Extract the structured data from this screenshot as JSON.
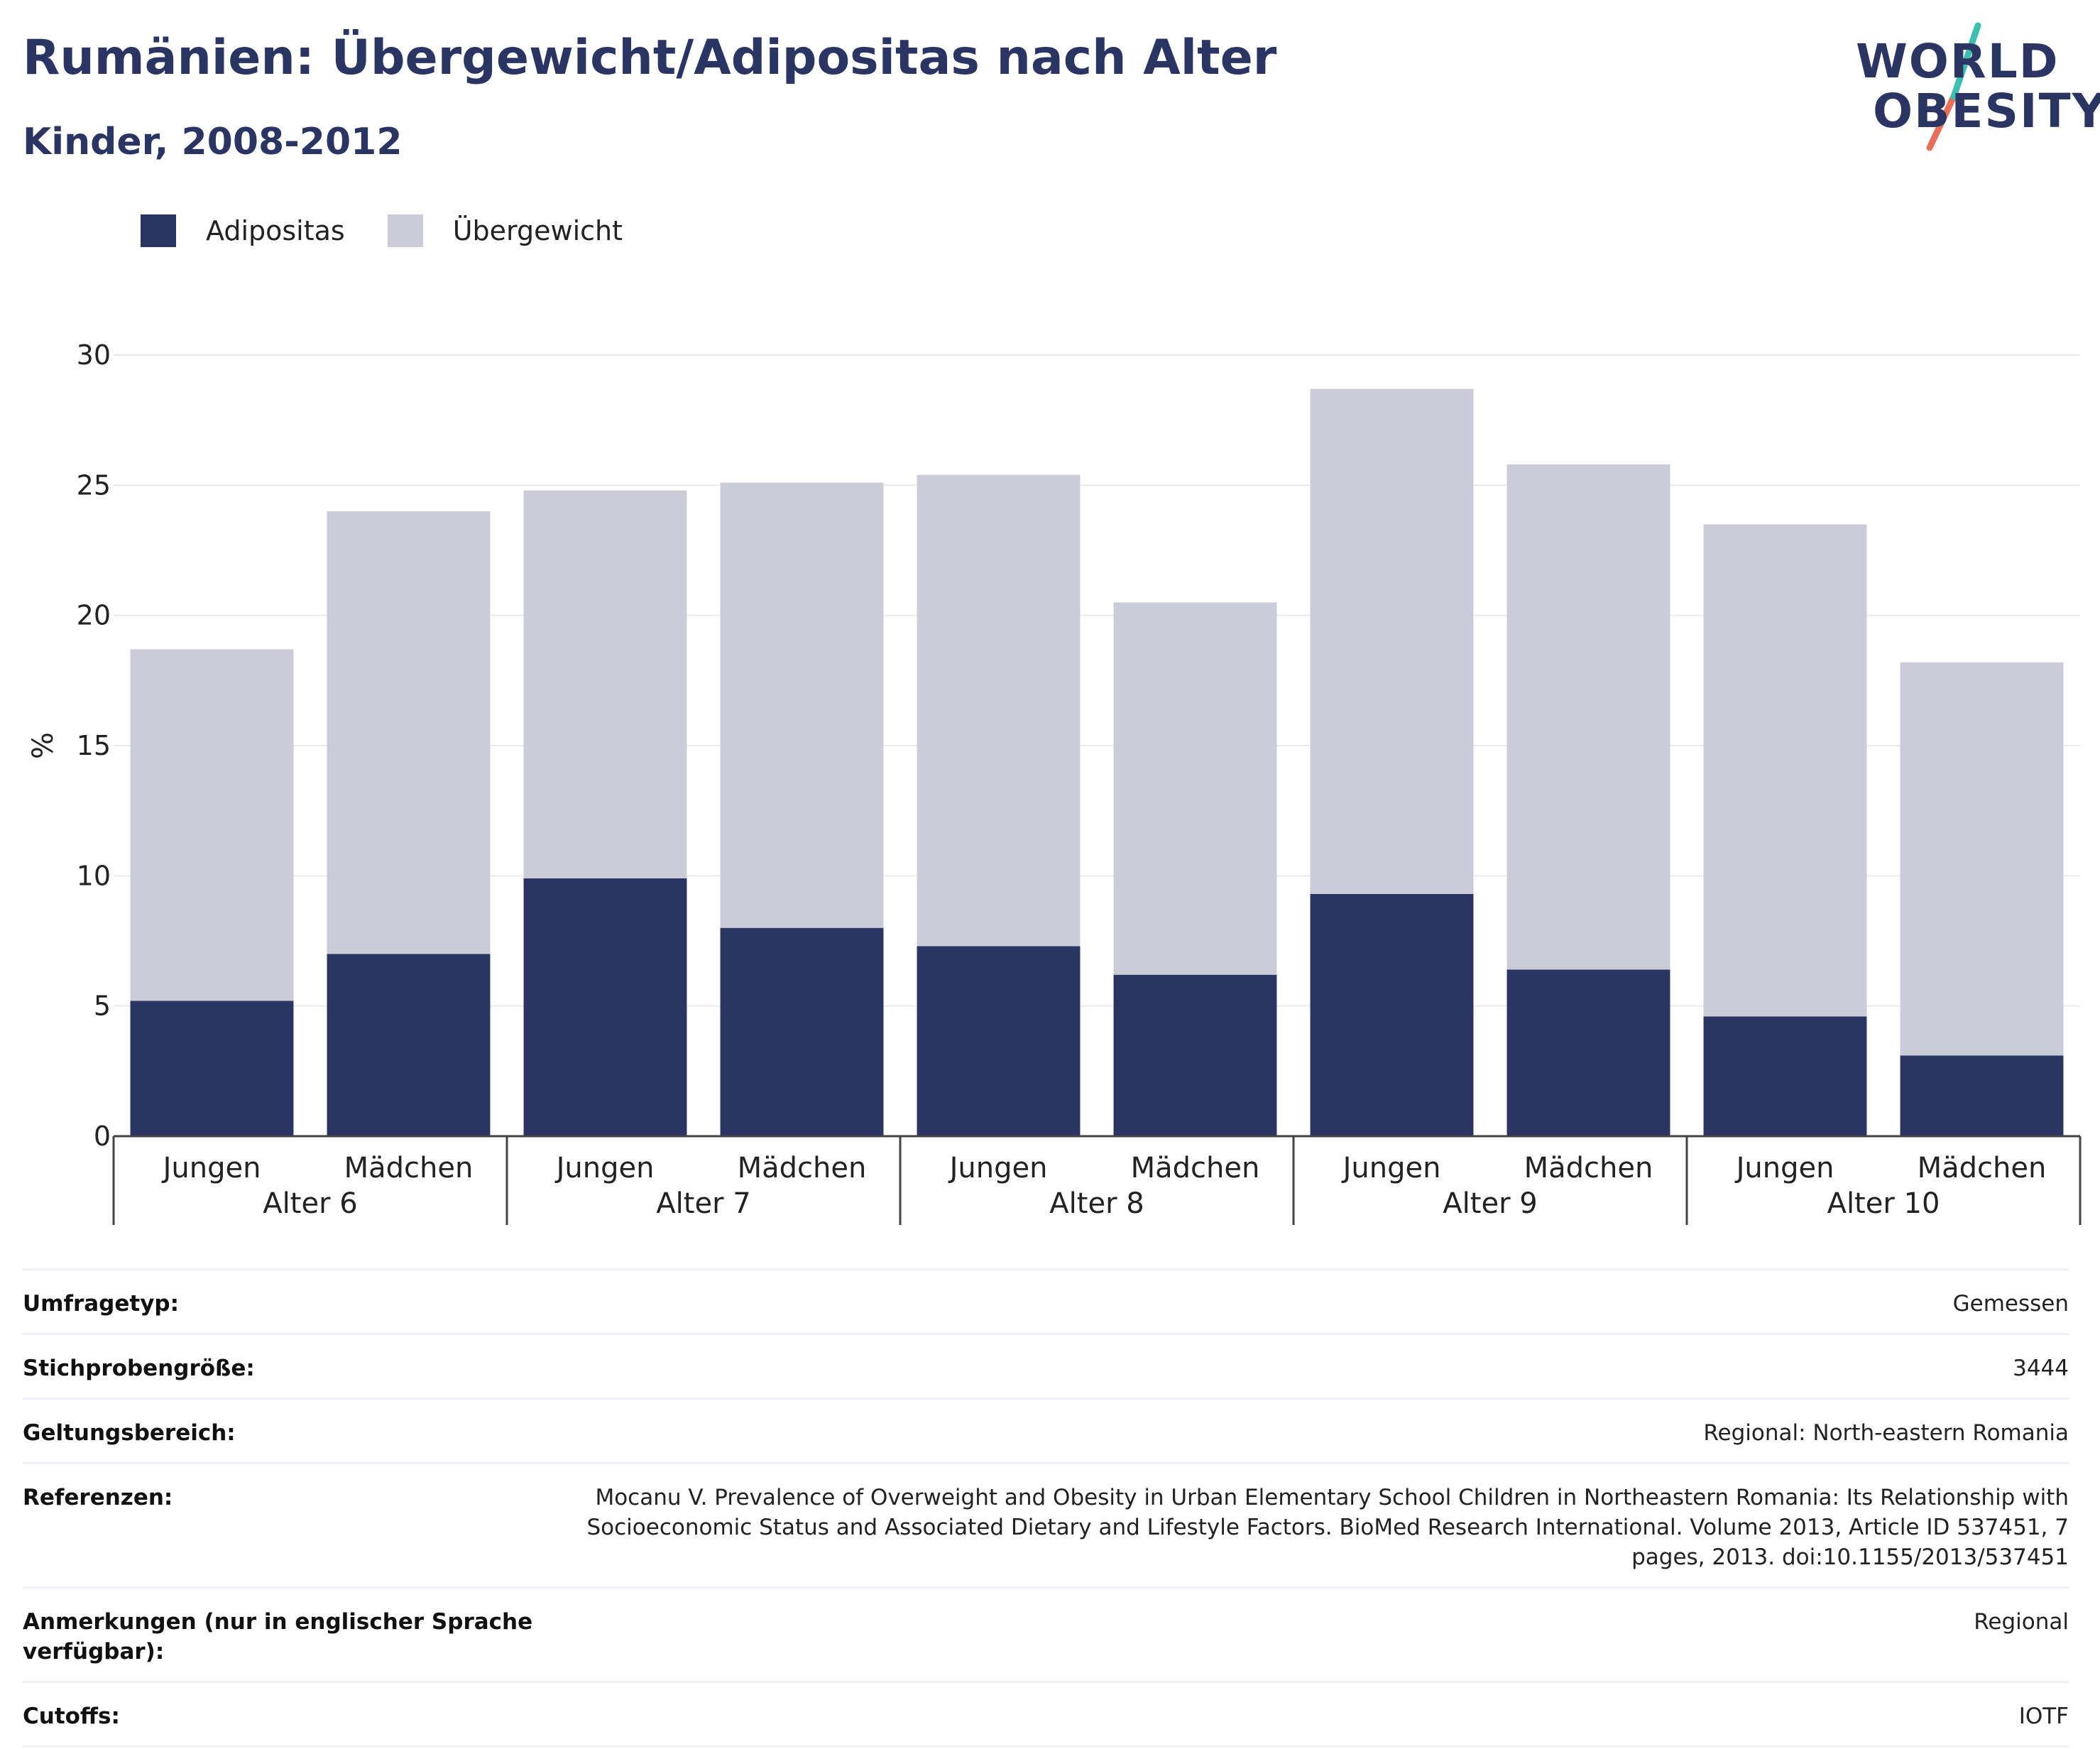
{
  "title": "Rumänien: Übergewicht/Adipositas nach Alter",
  "subtitle": "Kinder, 2008-2012",
  "logo": {
    "line1": "WORLD",
    "line2": "OBESITY",
    "text_color": "#2a3563",
    "slash_colors": [
      "#3cbfae",
      "#e8705a"
    ]
  },
  "legend": [
    {
      "label": "Adipositas",
      "color": "#2a3563"
    },
    {
      "label": "Übergewicht",
      "color": "#cbccd8"
    }
  ],
  "chart_data": {
    "type": "bar",
    "stacked": true,
    "ylabel": "%",
    "ylim": [
      0,
      30
    ],
    "yticks": [
      0,
      5,
      10,
      15,
      20,
      25,
      30
    ],
    "grid": true,
    "legend_position": "top-left",
    "groups": [
      "Alter 6",
      "Alter 7",
      "Alter 8",
      "Alter 9",
      "Alter 10"
    ],
    "categories": [
      "Jungen",
      "Mädchen",
      "Jungen",
      "Mädchen",
      "Jungen",
      "Mädchen",
      "Jungen",
      "Mädchen",
      "Jungen",
      "Mädchen"
    ],
    "series": [
      {
        "name": "Adipositas",
        "color": "#2a3563",
        "values": [
          5.2,
          7.0,
          9.9,
          8.0,
          7.3,
          6.2,
          9.3,
          6.4,
          4.6,
          3.1
        ]
      },
      {
        "name": "Übergewicht",
        "color": "#cbccd8",
        "values": [
          13.5,
          17.0,
          14.9,
          17.1,
          18.1,
          14.3,
          19.4,
          19.4,
          18.9,
          15.1
        ]
      }
    ],
    "totals": [
      18.7,
      24.0,
      24.8,
      25.1,
      25.4,
      20.5,
      28.7,
      25.8,
      23.5,
      18.2
    ]
  },
  "info": [
    {
      "label": "Umfragetyp:",
      "value": "Gemessen"
    },
    {
      "label": "Stichprobengröße:",
      "value": "3444"
    },
    {
      "label": "Geltungsbereich:",
      "value": "Regional: North-eastern Romania"
    },
    {
      "label": "Referenzen:",
      "value": "Mocanu V. Prevalence of Overweight and Obesity in Urban Elementary School Children in Northeastern Romania: Its Relationship with Socioeconomic Status and Associated Dietary and Lifestyle Factors. BioMed Research International. Volume 2013, Article ID 537451, 7 pages, 2013. doi:10.1155/2013/537451"
    },
    {
      "label": "Anmerkungen (nur in englischer Sprache verfügbar):",
      "value": "Regional"
    },
    {
      "label": "Cutoffs:",
      "value": "IOTF"
    }
  ]
}
